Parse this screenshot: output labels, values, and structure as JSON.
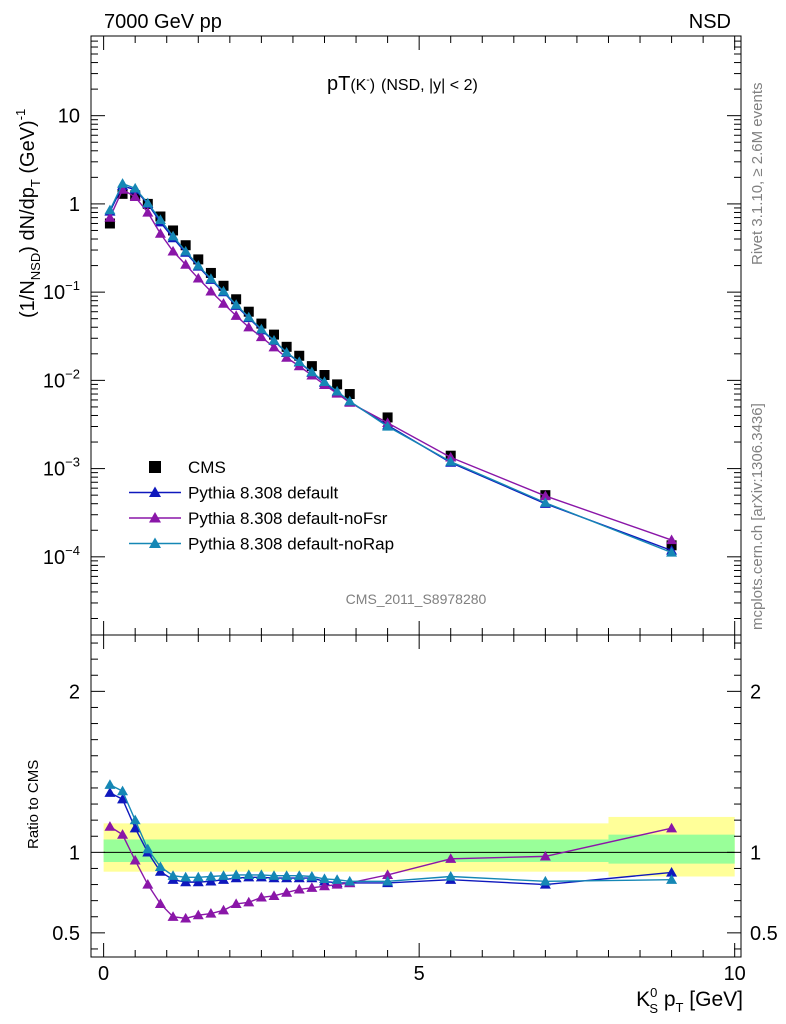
{
  "header": {
    "left": "7000 GeV pp",
    "right": "NSD"
  },
  "plot_title": {
    "main": "pT",
    "particle": "(K",
    "particle_sup": "-",
    "particle_close": ")",
    "cut": "(NSD, |y| < 2)"
  },
  "watermark": "CMS_2011_S8978280",
  "side_labels": {
    "rivet": "Rivet 3.1.10, ≥ 2.6M events",
    "mcplots": "mcplots.cern.ch [arXiv:1306.3436]"
  },
  "labels": {
    "ylabel_main_parts": [
      "(1/N",
      "NSD",
      ") dN/dp",
      "T",
      " (GeV)",
      "-1"
    ],
    "ylabel_ratio": "Ratio to CMS",
    "xlabel_parts": [
      "K",
      "0",
      "S",
      " p",
      "T",
      " [GeV]"
    ]
  },
  "chart_data": [
    {
      "type": "scatter",
      "yscale": "log",
      "xlim": [
        -0.2,
        10.1
      ],
      "ylim": [
        1.3e-05,
        80
      ],
      "xtick_values": [
        0,
        5,
        10
      ],
      "yticks": [
        {
          "value": 10,
          "label": "10"
        },
        {
          "value": 1,
          "label": "1"
        },
        {
          "value": 0.1,
          "label": "10",
          "exp": "−1"
        },
        {
          "value": 0.01,
          "label": "10",
          "exp": "−2"
        },
        {
          "value": 0.001,
          "label": "10",
          "exp": "−3"
        },
        {
          "value": 0.0001,
          "label": "10",
          "exp": "−4"
        }
      ],
      "legend_position": "bottom-left",
      "x": [
        0.1,
        0.3,
        0.5,
        0.7,
        0.9,
        1.1,
        1.3,
        1.5,
        1.7,
        1.9,
        2.1,
        2.3,
        2.5,
        2.7,
        2.9,
        3.1,
        3.3,
        3.5,
        3.7,
        3.9,
        4.5,
        5.5,
        7.0,
        9.0
      ],
      "series": [
        {
          "name": "CMS",
          "color": "#000000",
          "marker": "square",
          "values": [
            0.6,
            1.3,
            1.25,
            1.0,
            0.72,
            0.5,
            0.34,
            0.235,
            0.165,
            0.118,
            0.083,
            0.06,
            0.044,
            0.033,
            0.024,
            0.019,
            0.0145,
            0.0115,
            0.009,
            0.007,
            0.0038,
            0.0014,
            0.0005,
            0.000135
          ]
        },
        {
          "name": "Pythia 8.308 default",
          "color": "#0f18bd",
          "marker": "triangle",
          "values": [
            0.82,
            1.6,
            1.45,
            1.0,
            0.62,
            0.41,
            0.28,
            0.195,
            0.138,
            0.1,
            0.07,
            0.051,
            0.037,
            0.028,
            0.0205,
            0.016,
            0.0122,
            0.0094,
            0.0073,
            0.0057,
            0.0031,
            0.00117,
            0.0004,
            0.000118
          ]
        },
        {
          "name": "Pythia 8.308 default-noFsr",
          "color": "#8a16a8",
          "marker": "triangle",
          "values": [
            0.7,
            1.45,
            1.2,
            0.8,
            0.46,
            0.29,
            0.205,
            0.143,
            0.102,
            0.074,
            0.054,
            0.04,
            0.031,
            0.0237,
            0.0181,
            0.0145,
            0.0114,
            0.0089,
            0.0071,
            0.0056,
            0.0033,
            0.00134,
            0.00049,
            0.000155
          ]
        },
        {
          "name": "Pythia 8.308 default-noRap",
          "color": "#1587b5",
          "marker": "triangle",
          "values": [
            0.85,
            1.7,
            1.5,
            1.02,
            0.66,
            0.43,
            0.29,
            0.2,
            0.142,
            0.102,
            0.072,
            0.052,
            0.038,
            0.0283,
            0.0207,
            0.0162,
            0.0124,
            0.0096,
            0.0075,
            0.0058,
            0.003,
            0.0012,
            0.00041,
            0.000112
          ]
        }
      ]
    },
    {
      "type": "line",
      "xlim": [
        -0.2,
        10.1
      ],
      "ylim": [
        0.35,
        2.35
      ],
      "xtick_values": [
        0,
        5,
        10
      ],
      "ytick_values": [
        0.5,
        1,
        2
      ],
      "ylabel": "Ratio to CMS",
      "bands": [
        {
          "x0": 0.0,
          "x1": 8.0,
          "lo": 0.88,
          "hi": 1.18,
          "color": "#ffff99"
        },
        {
          "x0": 8.0,
          "x1": 10.0,
          "lo": 0.85,
          "hi": 1.22,
          "color": "#ffff99"
        },
        {
          "x0": 0.0,
          "x1": 8.0,
          "lo": 0.94,
          "hi": 1.08,
          "color": "#99ff99"
        },
        {
          "x0": 8.0,
          "x1": 10.0,
          "lo": 0.93,
          "hi": 1.11,
          "color": "#99ff99"
        }
      ],
      "reference_line": 1,
      "x": [
        0.1,
        0.3,
        0.5,
        0.7,
        0.9,
        1.1,
        1.3,
        1.5,
        1.7,
        1.9,
        2.1,
        2.3,
        2.5,
        2.7,
        2.9,
        3.1,
        3.3,
        3.5,
        3.7,
        3.9,
        4.5,
        5.5,
        7.0,
        9.0
      ],
      "series": [
        {
          "name": "Pythia 8.308 default",
          "color": "#0f18bd",
          "values": [
            1.37,
            1.33,
            1.15,
            1.0,
            0.88,
            0.83,
            0.815,
            0.815,
            0.82,
            0.83,
            0.84,
            0.845,
            0.845,
            0.84,
            0.84,
            0.84,
            0.84,
            0.82,
            0.81,
            0.81,
            0.81,
            0.83,
            0.8,
            0.875
          ]
        },
        {
          "name": "Pythia 8.308 default-noFsr",
          "color": "#8a16a8",
          "values": [
            1.16,
            1.11,
            0.95,
            0.8,
            0.68,
            0.6,
            0.59,
            0.61,
            0.62,
            0.64,
            0.68,
            0.69,
            0.72,
            0.73,
            0.75,
            0.77,
            0.78,
            0.79,
            0.8,
            0.81,
            0.86,
            0.96,
            0.975,
            1.15
          ]
        },
        {
          "name": "Pythia 8.308 default-noRap",
          "color": "#1587b5",
          "values": [
            1.42,
            1.38,
            1.2,
            1.02,
            0.91,
            0.855,
            0.845,
            0.845,
            0.85,
            0.855,
            0.86,
            0.86,
            0.86,
            0.855,
            0.855,
            0.855,
            0.85,
            0.835,
            0.83,
            0.82,
            0.82,
            0.85,
            0.82,
            0.83
          ]
        }
      ]
    }
  ]
}
